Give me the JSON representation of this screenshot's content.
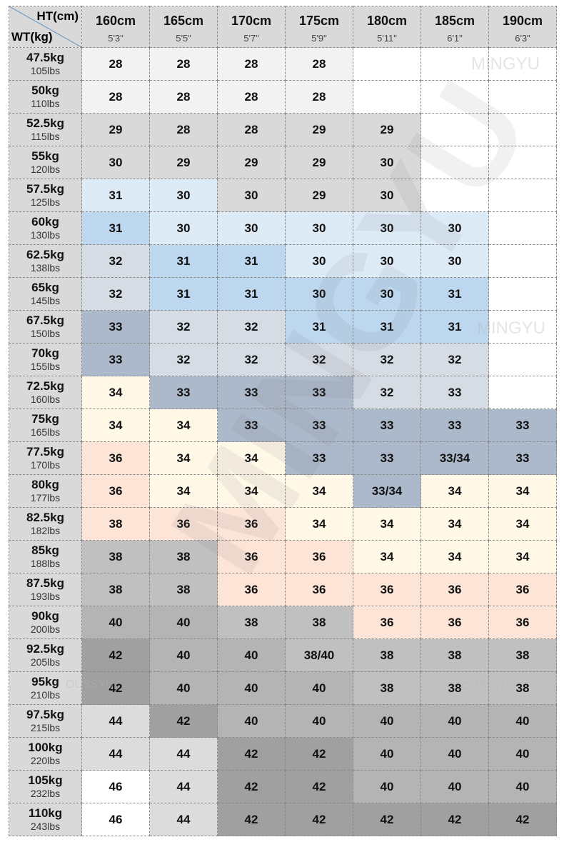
{
  "header": {
    "corner_top": "HT(cm)",
    "corner_bottom": "WT(kg)",
    "heights": [
      {
        "cm": "160cm",
        "ft": "5'3\""
      },
      {
        "cm": "165cm",
        "ft": "5'5\""
      },
      {
        "cm": "170cm",
        "ft": "5'7\""
      },
      {
        "cm": "175cm",
        "ft": "5'9\""
      },
      {
        "cm": "180cm",
        "ft": "5'11\""
      },
      {
        "cm": "185cm",
        "ft": "6'1\""
      },
      {
        "cm": "190cm",
        "ft": "6'3\""
      }
    ]
  },
  "palette": {
    "w": "#ffffff",
    "l": "#f2f2f2",
    "g": "#d9d9d9",
    "b1": "#ddebf7",
    "b2": "#bdd7ee",
    "s": "#d6dce4",
    "s2": "#acb9ca",
    "y": "#fff8e7",
    "p": "#fce4d6",
    "g2": "#c0c0c0",
    "g3": "#b4b4b4",
    "g4": "#a0a0a0",
    "lg": "#dcdcdc"
  },
  "rows": [
    {
      "kg": "47.5kg",
      "lbs": "105lbs",
      "sizes": [
        "28",
        "28",
        "28",
        "28",
        "",
        "",
        ""
      ],
      "colors": [
        "l",
        "l",
        "l",
        "l",
        "w",
        "w",
        "w"
      ]
    },
    {
      "kg": "50kg",
      "lbs": "110lbs",
      "sizes": [
        "28",
        "28",
        "28",
        "28",
        "",
        "",
        ""
      ],
      "colors": [
        "l",
        "l",
        "l",
        "l",
        "w",
        "w",
        "w"
      ]
    },
    {
      "kg": "52.5kg",
      "lbs": "115lbs",
      "sizes": [
        "29",
        "28",
        "28",
        "29",
        "29",
        "",
        ""
      ],
      "colors": [
        "g",
        "g",
        "g",
        "g",
        "g",
        "w",
        "w"
      ]
    },
    {
      "kg": "55kg",
      "lbs": "120lbs",
      "sizes": [
        "30",
        "29",
        "29",
        "29",
        "30",
        "",
        ""
      ],
      "colors": [
        "g",
        "g",
        "g",
        "g",
        "g",
        "w",
        "w"
      ]
    },
    {
      "kg": "57.5kg",
      "lbs": "125lbs",
      "sizes": [
        "31",
        "30",
        "30",
        "29",
        "30",
        "",
        ""
      ],
      "colors": [
        "b1",
        "b1",
        "g",
        "g",
        "g",
        "w",
        "w"
      ]
    },
    {
      "kg": "60kg",
      "lbs": "130lbs",
      "sizes": [
        "31",
        "30",
        "30",
        "30",
        "30",
        "30",
        ""
      ],
      "colors": [
        "b2",
        "b1",
        "b1",
        "b1",
        "b1",
        "b1",
        "w"
      ]
    },
    {
      "kg": "62.5kg",
      "lbs": "138lbs",
      "sizes": [
        "32",
        "31",
        "31",
        "30",
        "30",
        "30",
        ""
      ],
      "colors": [
        "s",
        "b2",
        "b2",
        "b1",
        "b1",
        "b1",
        "w"
      ]
    },
    {
      "kg": "65kg",
      "lbs": "145lbs",
      "sizes": [
        "32",
        "31",
        "31",
        "30",
        "30",
        "31",
        ""
      ],
      "colors": [
        "s",
        "b2",
        "b2",
        "b2",
        "b2",
        "b2",
        "w"
      ]
    },
    {
      "kg": "67.5kg",
      "lbs": "150lbs",
      "sizes": [
        "33",
        "32",
        "32",
        "31",
        "31",
        "31",
        ""
      ],
      "colors": [
        "s2",
        "s",
        "s",
        "b2",
        "b2",
        "b2",
        "w"
      ]
    },
    {
      "kg": "70kg",
      "lbs": "155lbs",
      "sizes": [
        "33",
        "32",
        "32",
        "32",
        "32",
        "32",
        ""
      ],
      "colors": [
        "s2",
        "s",
        "s",
        "s",
        "s",
        "s",
        "w"
      ]
    },
    {
      "kg": "72.5kg",
      "lbs": "160lbs",
      "sizes": [
        "34",
        "33",
        "33",
        "33",
        "32",
        "33",
        ""
      ],
      "colors": [
        "y",
        "s2",
        "s2",
        "s2",
        "s",
        "s",
        "w"
      ]
    },
    {
      "kg": "75kg",
      "lbs": "165lbs",
      "sizes": [
        "34",
        "34",
        "33",
        "33",
        "33",
        "33",
        "33"
      ],
      "colors": [
        "y",
        "y",
        "s2",
        "s2",
        "s2",
        "s2",
        "s2"
      ]
    },
    {
      "kg": "77.5kg",
      "lbs": "170lbs",
      "sizes": [
        "36",
        "34",
        "34",
        "33",
        "33",
        "33/34",
        "33"
      ],
      "colors": [
        "p",
        "y",
        "y",
        "s2",
        "s2",
        "s2",
        "s2"
      ]
    },
    {
      "kg": "80kg",
      "lbs": "177lbs",
      "sizes": [
        "36",
        "34",
        "34",
        "34",
        "33/34",
        "34",
        "34"
      ],
      "colors": [
        "p",
        "y",
        "y",
        "y",
        "s2",
        "y",
        "y"
      ]
    },
    {
      "kg": "82.5kg",
      "lbs": "182lbs",
      "sizes": [
        "38",
        "36",
        "36",
        "34",
        "34",
        "34",
        "34"
      ],
      "colors": [
        "p",
        "p",
        "p",
        "y",
        "y",
        "y",
        "y"
      ]
    },
    {
      "kg": "85kg",
      "lbs": "188lbs",
      "sizes": [
        "38",
        "38",
        "36",
        "36",
        "34",
        "34",
        "34"
      ],
      "colors": [
        "g2",
        "g2",
        "p",
        "p",
        "y",
        "y",
        "y"
      ]
    },
    {
      "kg": "87.5kg",
      "lbs": "193lbs",
      "sizes": [
        "38",
        "38",
        "36",
        "36",
        "36",
        "36",
        "36"
      ],
      "colors": [
        "g2",
        "g2",
        "p",
        "p",
        "p",
        "p",
        "p"
      ]
    },
    {
      "kg": "90kg",
      "lbs": "200lbs",
      "sizes": [
        "40",
        "40",
        "38",
        "38",
        "36",
        "36",
        "36"
      ],
      "colors": [
        "g3",
        "g3",
        "g2",
        "g2",
        "p",
        "p",
        "p"
      ]
    },
    {
      "kg": "92.5kg",
      "lbs": "205lbs",
      "sizes": [
        "42",
        "40",
        "40",
        "38/40",
        "38",
        "38",
        "38"
      ],
      "colors": [
        "g4",
        "g3",
        "g3",
        "g2",
        "g2",
        "g2",
        "g2"
      ]
    },
    {
      "kg": "95kg",
      "lbs": "210lbs",
      "sizes": [
        "42",
        "40",
        "40",
        "40",
        "38",
        "38",
        "38"
      ],
      "colors": [
        "g4",
        "g3",
        "g3",
        "g3",
        "g2",
        "g2",
        "g2"
      ]
    },
    {
      "kg": "97.5kg",
      "lbs": "215lbs",
      "sizes": [
        "44",
        "42",
        "40",
        "40",
        "40",
        "40",
        "40"
      ],
      "colors": [
        "lg",
        "g4",
        "g3",
        "g3",
        "g3",
        "g3",
        "g3"
      ]
    },
    {
      "kg": "100kg",
      "lbs": "220lbs",
      "sizes": [
        "44",
        "44",
        "42",
        "42",
        "40",
        "40",
        "40"
      ],
      "colors": [
        "lg",
        "lg",
        "g4",
        "g4",
        "g3",
        "g3",
        "g3"
      ]
    },
    {
      "kg": "105kg",
      "lbs": "232lbs",
      "sizes": [
        "46",
        "44",
        "42",
        "42",
        "40",
        "40",
        "40"
      ],
      "colors": [
        "w",
        "lg",
        "g4",
        "g4",
        "g3",
        "g3",
        "g3"
      ]
    },
    {
      "kg": "110kg",
      "lbs": "243lbs",
      "sizes": [
        "46",
        "44",
        "42",
        "42",
        "42",
        "42",
        "42"
      ],
      "colors": [
        "w",
        "lg",
        "g4",
        "g4",
        "g4",
        "g4",
        "g4"
      ]
    }
  ],
  "watermarks": {
    "brand": "MINGYU",
    "brand2": "OUSSYU"
  }
}
